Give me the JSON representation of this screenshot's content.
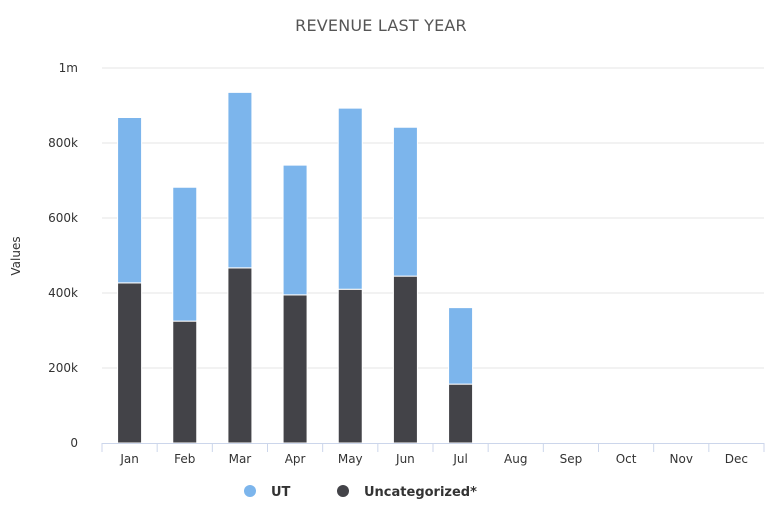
{
  "chart_data": {
    "type": "bar",
    "stacked": true,
    "title": "REVENUE LAST YEAR",
    "xlabel": "",
    "ylabel": "Values",
    "categories": [
      "Jan",
      "Feb",
      "Mar",
      "Apr",
      "May",
      "Jun",
      "Jul",
      "Aug",
      "Sep",
      "Oct",
      "Nov",
      "Dec"
    ],
    "yticks": [
      {
        "value": 0,
        "label": "0"
      },
      {
        "value": 200000,
        "label": "200k"
      },
      {
        "value": 400000,
        "label": "400k"
      },
      {
        "value": 600000,
        "label": "600k"
      },
      {
        "value": 800000,
        "label": "800k"
      },
      {
        "value": 1000000,
        "label": "1m"
      }
    ],
    "ylim": [
      0,
      1000000
    ],
    "grid": true,
    "legend_position": "bottom-center",
    "series": [
      {
        "name": "Uncategorized*",
        "color": "#434348",
        "values": [
          427000,
          325000,
          467000,
          395000,
          410000,
          445000,
          157000,
          0,
          0,
          0,
          0,
          0
        ]
      },
      {
        "name": "UT",
        "color": "#7cb5ec",
        "values": [
          441000,
          357000,
          468000,
          346000,
          483000,
          397000,
          204000,
          0,
          0,
          0,
          0,
          0
        ]
      }
    ],
    "legend_order": [
      "UT",
      "Uncategorized*"
    ]
  }
}
